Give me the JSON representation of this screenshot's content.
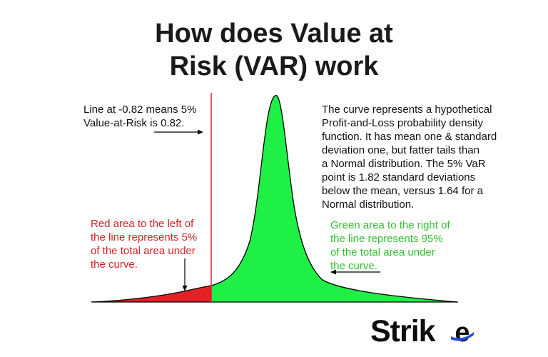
{
  "title_line1": "How does Value at",
  "title_line2": "Risk (VAR) work",
  "note_line": [
    "Line at -0.82 means 5%",
    "Value-at-Risk is 0.82."
  ],
  "note_curve": [
    "The curve represents a hypothetical",
    "Profit-and-Loss probability density",
    "function. It has mean one & standard",
    "deviation one, but fatter tails than",
    "a Normal distribution. The 5% VaR",
    "point is 1.82 standard deviations",
    "below the mean, versus 1.64 for a",
    "Normal distribution."
  ],
  "note_red": [
    "Red area to the left of",
    "the line represents 5%",
    "of the total area under",
    "the curve."
  ],
  "note_green": [
    "Green area to the right of",
    "the line represents 95%",
    "of the total area under",
    "the curve."
  ],
  "logo": {
    "text": "Strik",
    "letter_e": "e"
  },
  "colors": {
    "red_area": "#e32127",
    "green_area": "#1ef046",
    "red_text": "#d61f26",
    "green_text": "#2fbf2f",
    "var_line": "#d9262c",
    "logo_blue": "#1f4de0"
  }
}
